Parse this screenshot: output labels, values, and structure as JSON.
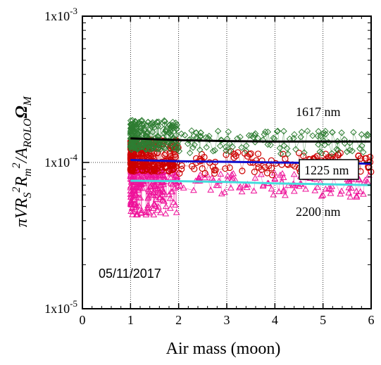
{
  "chart_data": {
    "type": "scatter",
    "xlabel": "Air mass (moon)",
    "ylabel": "πVR_S²R_m²/A_ROLO·Ω_M",
    "xlim": [
      0,
      6
    ],
    "ylim": [
      1e-05,
      0.001
    ],
    "yscale": "log",
    "x_ticks": [
      "0",
      "1",
      "2",
      "3",
      "4",
      "5",
      "6"
    ],
    "y_ticks": [
      {
        "base": "1x10",
        "exp": "-3",
        "value": 0.001
      },
      {
        "base": "1x10",
        "exp": "-4",
        "value": 0.0001
      },
      {
        "base": "1x10",
        "exp": "-5",
        "value": 1e-05
      }
    ],
    "grid": "vertical-dotted",
    "date_annotation": "05/11/2017",
    "series": [
      {
        "name": "1617 nm",
        "color": "#2e7d32",
        "marker": "diamond",
        "fit_color": "#000000",
        "fit": [
          [
            1.0,
            0.000146
          ],
          [
            2.0,
            0.000142
          ],
          [
            3.0,
            0.00014
          ],
          [
            4.0,
            0.000139
          ],
          [
            5.0,
            0.000139
          ],
          [
            6.0,
            0.000139
          ]
        ],
        "range": [
          0.00012,
          0.0002
        ]
      },
      {
        "name": "1225 nm",
        "color": "#cc0000",
        "marker": "circle",
        "fit_color": "#1010cc",
        "fit": [
          [
            1.0,
            0.000104
          ],
          [
            2.0,
            0.000102
          ],
          [
            3.0,
            0.000101
          ],
          [
            4.0,
            0.0001
          ],
          [
            5.0,
            9.9e-05
          ],
          [
            6.0,
            9.8e-05
          ]
        ],
        "range": [
          8.5e-05,
          0.00015
        ]
      },
      {
        "name": "2200 nm",
        "color": "#ee1199",
        "marker": "triangle",
        "fit_color": "#44dddd",
        "fit": [
          [
            1.0,
            7.5e-05
          ],
          [
            2.0,
            7.45e-05
          ],
          [
            3.0,
            7.35e-05
          ],
          [
            4.0,
            7.2e-05
          ],
          [
            5.0,
            7.1e-05
          ],
          [
            6.0,
            7e-05
          ]
        ],
        "range": [
          4e-05,
          9.5e-05
        ]
      }
    ]
  }
}
